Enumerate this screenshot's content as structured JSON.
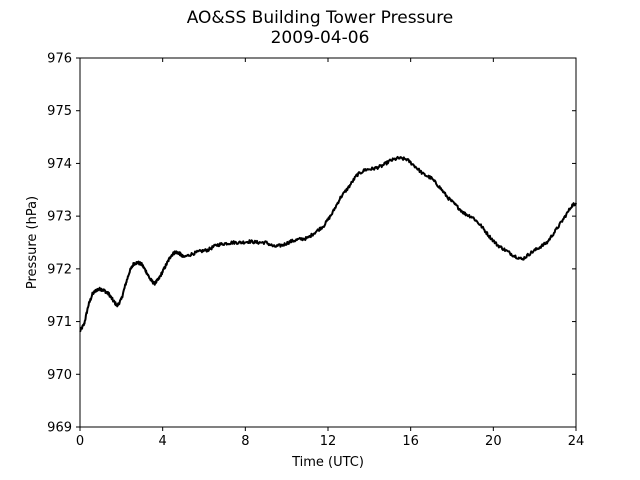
{
  "chart_data": {
    "type": "line",
    "title": "AO&SS Building Tower Pressure",
    "subtitle": "2009-04-06",
    "xlabel": "Time (UTC)",
    "ylabel": "Pressure (hPa)",
    "xlim": [
      0,
      24
    ],
    "ylim": [
      969,
      976
    ],
    "xticks": [
      0,
      4,
      8,
      12,
      16,
      20,
      24
    ],
    "yticks": [
      969,
      970,
      971,
      972,
      973,
      974,
      975,
      976
    ],
    "grid": false,
    "legend": "none",
    "line_color": "#000000",
    "series": [
      {
        "x": [
          0.0,
          0.2,
          0.4,
          0.6,
          0.8,
          1.0,
          1.2,
          1.4,
          1.6,
          1.8,
          2.0,
          2.2,
          2.4,
          2.6,
          2.8,
          3.0,
          3.2,
          3.4,
          3.6,
          3.8,
          4.0,
          4.2,
          4.4,
          4.6,
          4.8,
          5.0,
          5.4,
          5.8,
          6.2,
          6.6,
          7.0,
          7.4,
          7.8,
          8.2,
          8.6,
          9.0,
          9.4,
          9.8,
          10.2,
          10.6,
          11.0,
          11.4,
          11.8,
          12.2,
          12.6,
          13.0,
          13.4,
          13.8,
          14.2,
          14.6,
          15.0,
          15.4,
          15.8,
          16.2,
          16.6,
          17.0,
          17.4,
          17.8,
          18.2,
          18.6,
          19.0,
          19.4,
          19.8,
          20.2,
          20.6,
          21.0,
          21.4,
          21.8,
          22.2,
          22.6,
          23.0,
          23.4,
          23.8,
          24.0
        ],
        "y": [
          970.82,
          970.95,
          971.3,
          971.52,
          971.6,
          971.62,
          971.58,
          971.52,
          971.4,
          971.3,
          971.42,
          971.7,
          971.95,
          972.1,
          972.12,
          972.08,
          971.95,
          971.8,
          971.72,
          971.8,
          971.95,
          972.1,
          972.25,
          972.32,
          972.3,
          972.22,
          972.28,
          972.33,
          972.36,
          972.45,
          972.48,
          972.5,
          972.5,
          972.52,
          972.5,
          972.5,
          972.42,
          972.45,
          972.52,
          972.56,
          972.58,
          972.7,
          972.82,
          973.05,
          973.35,
          973.55,
          973.78,
          973.88,
          973.9,
          973.95,
          974.05,
          974.1,
          974.08,
          973.95,
          973.8,
          973.72,
          973.55,
          973.35,
          973.2,
          973.05,
          972.98,
          972.82,
          972.62,
          972.45,
          972.35,
          972.25,
          972.18,
          972.3,
          972.4,
          972.5,
          972.72,
          972.95,
          973.2,
          973.25
        ]
      }
    ]
  }
}
